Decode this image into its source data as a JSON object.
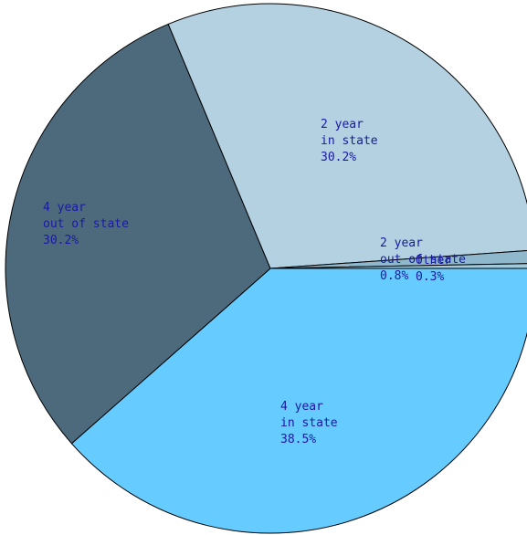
{
  "chart_data": {
    "type": "pie",
    "categories": [
      "4 year\nin state",
      "4 year\nout of state",
      "2 year\nin state",
      "2 year\nout of state",
      "Other"
    ],
    "values": [
      38.5,
      30.2,
      30.2,
      0.8,
      0.3
    ],
    "value_labels": [
      "38.5%",
      "30.2%",
      "30.2%",
      "0.8%",
      "0.3%"
    ],
    "colors": [
      "#66ccff",
      "#4d6a7d",
      "#b3d1e0",
      "#8fb8cc",
      "#a3c9da"
    ]
  }
}
